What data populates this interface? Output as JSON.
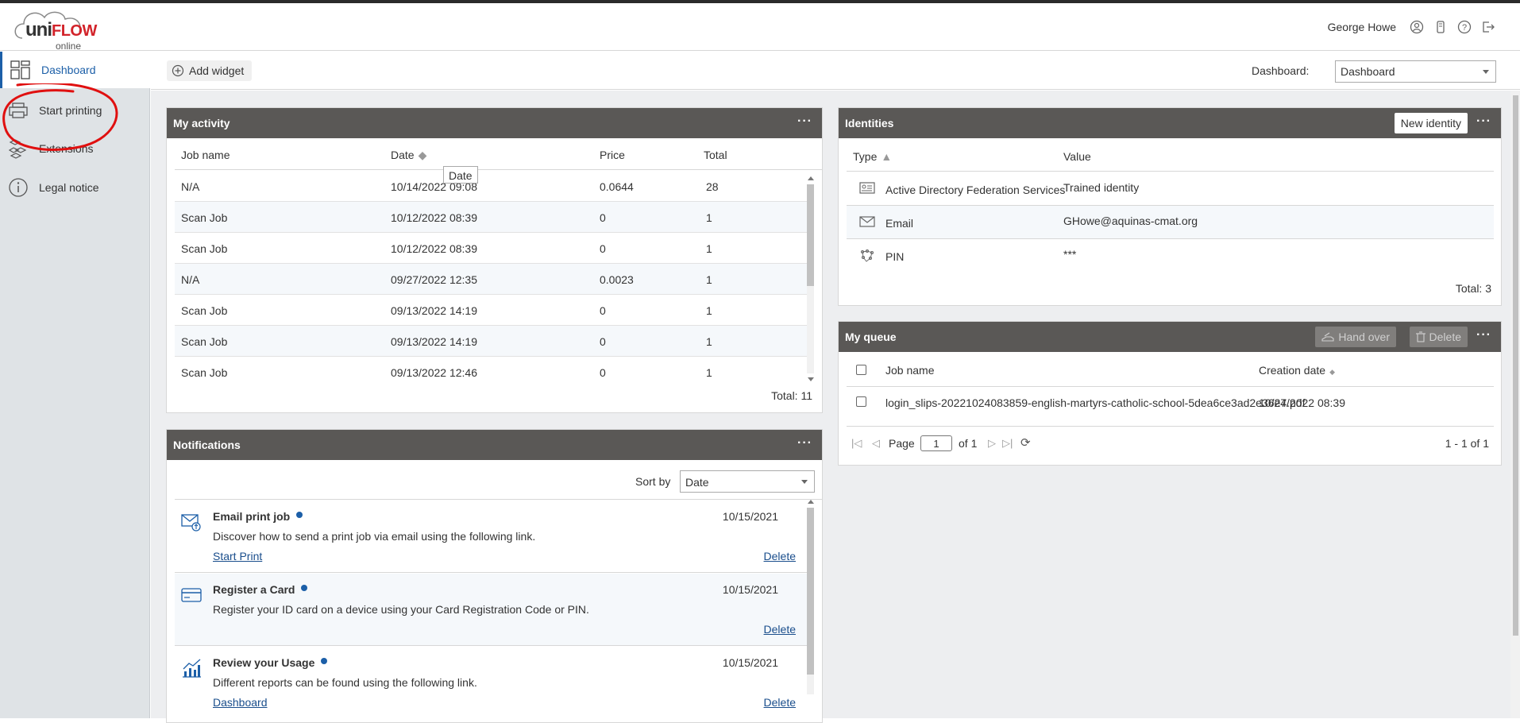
{
  "app": {
    "logo_uni": "uni",
    "logo_flow": "FLOW",
    "logo_online": "online",
    "user_name": "George Howe",
    "header_icons": [
      "profile-icon",
      "device-icon",
      "help-icon",
      "logout-icon"
    ],
    "brand_red": "#d2232a",
    "accent_blue": "#1c5fa8"
  },
  "sidebar": {
    "items": [
      {
        "label": "Dashboard",
        "icon": "dashboard-icon",
        "active": true
      },
      {
        "label": "Start printing",
        "icon": "printer-icon",
        "active": false
      },
      {
        "label": "Extensions",
        "icon": "extensions-icon",
        "active": false
      },
      {
        "label": "Legal notice",
        "icon": "info-icon",
        "active": false
      }
    ]
  },
  "toolbar": {
    "add_widget_label": "Add widget",
    "dashboard_label": "Dashboard:",
    "dashboard_selected": "Dashboard"
  },
  "activity": {
    "title": "My activity",
    "more": "···",
    "columns": {
      "job_name": "Job name",
      "date": "Date",
      "price": "Price",
      "total": "Total"
    },
    "tooltip": "Date",
    "rows": [
      {
        "job": "N/A",
        "date": "10/14/2022 09:08",
        "price": "0.0644",
        "total": "28"
      },
      {
        "job": "Scan Job",
        "date": "10/12/2022 08:39",
        "price": "0",
        "total": "1"
      },
      {
        "job": "Scan Job",
        "date": "10/12/2022 08:39",
        "price": "0",
        "total": "1"
      },
      {
        "job": "N/A",
        "date": "09/27/2022 12:35",
        "price": "0.0023",
        "total": "1"
      },
      {
        "job": "Scan Job",
        "date": "09/13/2022 14:19",
        "price": "0",
        "total": "1"
      },
      {
        "job": "Scan Job",
        "date": "09/13/2022 14:19",
        "price": "0",
        "total": "1"
      },
      {
        "job": "Scan Job",
        "date": "09/13/2022 12:46",
        "price": "0",
        "total": "1"
      }
    ],
    "total_text": "Total: 11"
  },
  "identities": {
    "title": "Identities",
    "new_button": "New identity",
    "more": "···",
    "columns": {
      "type": "Type",
      "value": "Value"
    },
    "rows": [
      {
        "type": "Active Directory Federation Services",
        "value": "Trained identity",
        "icon": "id-card-icon"
      },
      {
        "type": "Email",
        "value": "GHowe@aquinas-cmat.org",
        "icon": "envelope-icon"
      },
      {
        "type": "PIN",
        "value": "***",
        "icon": "pin-icon"
      }
    ],
    "total_text": "Total: 3"
  },
  "queue": {
    "title": "My queue",
    "hand_over": "Hand over",
    "delete": "Delete",
    "more": "···",
    "columns": {
      "job_name": "Job name",
      "creation_date": "Creation date"
    },
    "rows": [
      {
        "job": "login_slips-20221024083859-english-martyrs-catholic-school-5dea6ce3ad2e36e7.pdf",
        "date": "10/24/2022 08:39"
      }
    ],
    "pager": {
      "page_label": "Page",
      "page_value": "1",
      "of_label": "of 1",
      "range": "1 - 1 of 1"
    }
  },
  "notifications": {
    "title": "Notifications",
    "more": "···",
    "sort_label": "Sort by",
    "sort_selected": "Date",
    "items": [
      {
        "title": "Email print job",
        "date": "10/15/2021",
        "desc": "Discover how to send a print job via email using the following link.",
        "link": "Start Print",
        "delete": "Delete",
        "icon": "email-print-icon"
      },
      {
        "title": "Register a Card",
        "date": "10/15/2021",
        "desc": "Register your ID card on a device using your Card Registration Code or PIN.",
        "link": "",
        "delete": "Delete",
        "icon": "card-icon"
      },
      {
        "title": "Review your Usage",
        "date": "10/15/2021",
        "desc": "Different reports can be found using the following link.",
        "link": "Dashboard",
        "delete": "Delete",
        "icon": "chart-icon"
      }
    ]
  }
}
